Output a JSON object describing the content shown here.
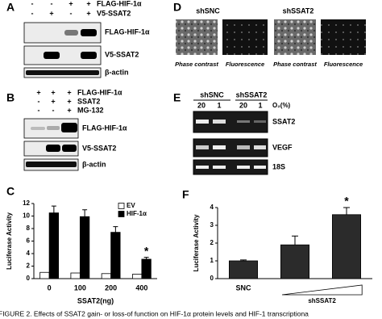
{
  "caption": "FIGURE 2. Effects of SSAT2 gain- or loss-of function on HIF-1α protein levels and HIF-1 transcriptiona",
  "panels": {
    "A": {
      "label": "A",
      "rows": [
        {
          "name": "FLAG-HIF-1α",
          "signs": [
            "-",
            "-",
            "+",
            "+"
          ]
        },
        {
          "name": "V5-SSAT2",
          "signs": [
            "-",
            "+",
            "-",
            "+"
          ]
        }
      ],
      "blots": [
        "FLAG-HIF-1α",
        "V5-SSAT2",
        "β-actin"
      ]
    },
    "B": {
      "label": "B",
      "rows": [
        {
          "name": "FLAG-HIF-1α",
          "signs": [
            "+",
            "+",
            "+"
          ]
        },
        {
          "name": "SSAT2",
          "signs": [
            "-",
            "+",
            "+"
          ]
        },
        {
          "name": "MG-132",
          "signs": [
            "-",
            "-",
            "+"
          ]
        }
      ],
      "blots": [
        "FLAG-HIF-1α",
        "V5-SSAT2",
        "β-actin"
      ]
    },
    "D": {
      "label": "D",
      "groups": [
        "shSNC",
        "shSSAT2"
      ],
      "images": [
        "Phase contrast",
        "Fluorescence",
        "Phase contrast",
        "Fluorescence"
      ]
    },
    "E": {
      "label": "E",
      "groups": [
        "shSNC",
        "shSSAT2"
      ],
      "conditions": [
        20,
        1,
        20,
        1
      ],
      "unit": "O₂(%)",
      "blots": [
        "SSAT2",
        "VEGF",
        "18S"
      ]
    }
  },
  "chart_data": [
    {
      "type": "bar",
      "panel": "C",
      "x_label": "SSAT2(ng)",
      "y_label": "Luciferase Activity",
      "categories": [
        "0",
        "100",
        "200",
        "400"
      ],
      "series": [
        {
          "name": "EV",
          "color": "#ffffff",
          "values": [
            1.0,
            0.9,
            0.8,
            0.7
          ]
        },
        {
          "name": "HIF-1α",
          "color": "#000000",
          "values": [
            10.5,
            9.9,
            7.4,
            3.1
          ],
          "errors": [
            1.1,
            1.1,
            0.9,
            0.3
          ]
        }
      ],
      "ylim": [
        0,
        12
      ],
      "yticks": [
        0,
        2,
        4,
        6,
        8,
        10,
        12
      ],
      "legend": "top-right",
      "annotation": "*"
    },
    {
      "type": "bar",
      "panel": "F",
      "y_label": "Luciferase Activity",
      "x_label": "shSSAT2",
      "categories": [
        "SNC",
        null,
        null
      ],
      "values": [
        1.0,
        1.9,
        3.6
      ],
      "errors": [
        0.05,
        0.5,
        0.4
      ],
      "color": "#2b2b2b",
      "ylim": [
        0,
        4
      ],
      "yticks": [
        0,
        1,
        2,
        3,
        4
      ],
      "annotation": "*"
    }
  ]
}
